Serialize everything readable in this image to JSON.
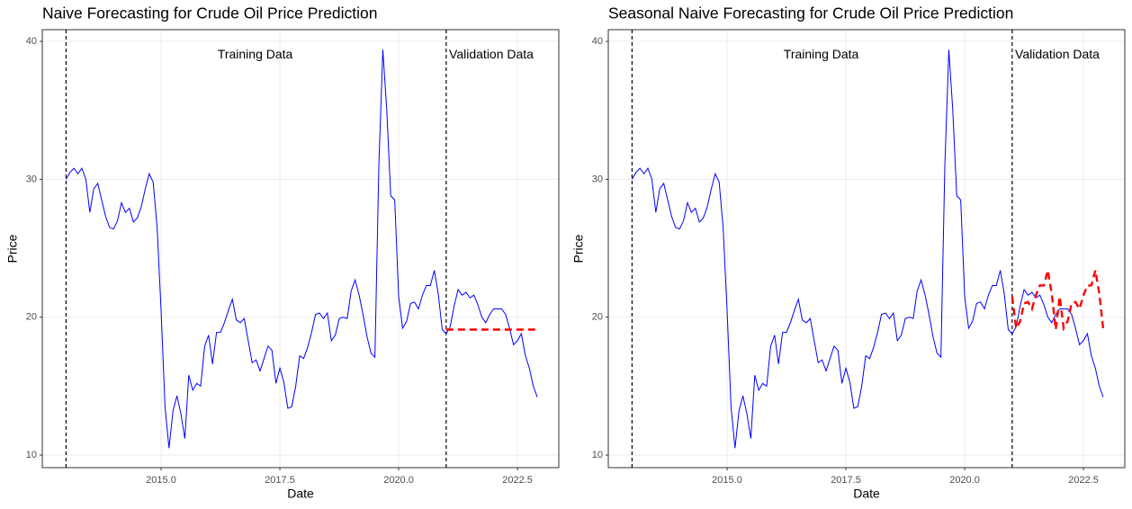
{
  "chart_data": [
    {
      "type": "line",
      "title": "Naive Forecasting for Crude Oil Price Prediction",
      "xlabel": "Date",
      "ylabel": "Price",
      "xlim": [
        2012.5,
        2023.37
      ],
      "ylim": [
        9.09,
        40.85
      ],
      "xticks": [
        {
          "value": 2015,
          "label": "2015.0"
        },
        {
          "value": 2017.5,
          "label": "2017.5"
        },
        {
          "value": 2020,
          "label": "2020.0"
        },
        {
          "value": 2022.5,
          "label": "2022.5"
        }
      ],
      "yticks": [
        10,
        20,
        30,
        40
      ],
      "grid": true,
      "vlines": [
        2013,
        2021
      ],
      "annotations": [
        {
          "text": "Training Data",
          "x": 2016.98,
          "y": 39.0
        },
        {
          "text": "Validation Data",
          "x": 2021.95,
          "y": 39.0
        }
      ],
      "series": [
        {
          "color": "#0000ff",
          "linestyle": "solid",
          "x": [
            2013,
            2013.083,
            2013.167,
            2013.25,
            2013.333,
            2013.417,
            2013.5,
            2013.583,
            2013.667,
            2013.75,
            2013.833,
            2013.917,
            2014,
            2014.083,
            2014.167,
            2014.25,
            2014.333,
            2014.417,
            2014.5,
            2014.583,
            2014.667,
            2014.75,
            2014.833,
            2014.917,
            2015,
            2015.083,
            2015.167,
            2015.25,
            2015.333,
            2015.417,
            2015.5,
            2015.583,
            2015.667,
            2015.75,
            2015.833,
            2015.917,
            2016,
            2016.083,
            2016.167,
            2016.25,
            2016.333,
            2016.417,
            2016.5,
            2016.583,
            2016.667,
            2016.75,
            2016.833,
            2016.917,
            2017,
            2017.083,
            2017.167,
            2017.25,
            2017.333,
            2017.417,
            2017.5,
            2017.583,
            2017.667,
            2017.75,
            2017.833,
            2017.917,
            2018,
            2018.083,
            2018.167,
            2018.25,
            2018.333,
            2018.417,
            2018.5,
            2018.583,
            2018.667,
            2018.75,
            2018.833,
            2018.917,
            2019,
            2019.083,
            2019.167,
            2019.25,
            2019.333,
            2019.417,
            2019.5,
            2019.583,
            2019.667,
            2019.75,
            2019.833,
            2019.917,
            2020,
            2020.083,
            2020.167,
            2020.25,
            2020.333,
            2020.417,
            2020.5,
            2020.583,
            2020.667,
            2020.75,
            2020.833,
            2020.917,
            2021,
            2021.083,
            2021.167,
            2021.25,
            2021.333,
            2021.417,
            2021.5,
            2021.583,
            2021.667,
            2021.75,
            2021.833,
            2021.917,
            2022,
            2022.083,
            2022.167,
            2022.25,
            2022.333,
            2022.417,
            2022.5,
            2022.583,
            2022.667,
            2022.75,
            2022.833,
            2022.917
          ],
          "values": [
            30.0,
            30.5,
            30.8,
            30.4,
            30.8,
            30.0,
            27.6,
            29.3,
            29.7,
            28.5,
            27.3,
            26.5,
            26.4,
            27.0,
            28.3,
            27.6,
            27.9,
            26.9,
            27.2,
            28.0,
            29.3,
            30.4,
            29.8,
            26.5,
            20.5,
            13.5,
            10.5,
            13.2,
            14.3,
            13.0,
            11.2,
            15.8,
            14.7,
            15.2,
            15.0,
            17.9,
            18.7,
            16.6,
            18.9,
            18.9,
            19.6,
            20.5,
            21.3,
            19.8,
            19.6,
            19.9,
            18.3,
            16.7,
            16.9,
            16.1,
            17.0,
            17.9,
            17.6,
            15.2,
            16.3,
            15.3,
            13.4,
            13.5,
            15.0,
            17.2,
            17.0,
            17.8,
            18.9,
            20.2,
            20.3,
            19.9,
            20.3,
            18.3,
            18.7,
            19.9,
            20.0,
            19.9,
            21.9,
            22.7,
            21.6,
            20.2,
            18.6,
            17.4,
            17.1,
            31.0,
            39.4,
            35.0,
            28.8,
            28.5,
            21.5,
            19.2,
            19.7,
            21.0,
            21.1,
            20.6,
            21.6,
            22.3,
            22.3,
            23.4,
            21.7,
            19.1,
            18.8,
            19.3,
            20.8,
            22.0,
            21.6,
            21.8,
            21.4,
            21.6,
            20.9,
            20.0,
            19.6,
            20.2,
            20.6,
            20.6,
            20.6,
            20.2,
            19.2,
            18.0,
            18.3,
            18.8,
            17.2,
            16.3,
            15.0,
            14.2
          ]
        },
        {
          "color": "#ff0000",
          "linestyle": "dashed",
          "x": [
            2021,
            2021.083,
            2021.167,
            2021.25,
            2021.333,
            2021.417,
            2021.5,
            2021.583,
            2021.667,
            2021.75,
            2021.833,
            2021.917,
            2022,
            2022.083,
            2022.167,
            2022.25,
            2022.333,
            2022.417,
            2022.5,
            2022.583,
            2022.667,
            2022.75,
            2022.833,
            2022.917
          ],
          "values": [
            19.1,
            19.1,
            19.1,
            19.1,
            19.1,
            19.1,
            19.1,
            19.1,
            19.1,
            19.1,
            19.1,
            19.1,
            19.1,
            19.1,
            19.1,
            19.1,
            19.1,
            19.1,
            19.1,
            19.1,
            19.1,
            19.1,
            19.1,
            19.1
          ]
        }
      ]
    },
    {
      "type": "line",
      "title": "Seasonal Naive Forecasting for Crude Oil Price Prediction",
      "xlabel": "Date",
      "ylabel": "Price",
      "xlim": [
        2012.5,
        2023.37
      ],
      "ylim": [
        9.09,
        40.85
      ],
      "xticks": [
        {
          "value": 2015,
          "label": "2015.0"
        },
        {
          "value": 2017.5,
          "label": "2017.5"
        },
        {
          "value": 2020,
          "label": "2020.0"
        },
        {
          "value": 2022.5,
          "label": "2022.5"
        }
      ],
      "yticks": [
        10,
        20,
        30,
        40
      ],
      "grid": true,
      "vlines": [
        2013,
        2021
      ],
      "annotations": [
        {
          "text": "Training Data",
          "x": 2016.98,
          "y": 39.0
        },
        {
          "text": "Validation Data",
          "x": 2021.95,
          "y": 39.0
        }
      ],
      "series": [
        {
          "color": "#0000ff",
          "linestyle": "solid",
          "x": [
            2013,
            2013.083,
            2013.167,
            2013.25,
            2013.333,
            2013.417,
            2013.5,
            2013.583,
            2013.667,
            2013.75,
            2013.833,
            2013.917,
            2014,
            2014.083,
            2014.167,
            2014.25,
            2014.333,
            2014.417,
            2014.5,
            2014.583,
            2014.667,
            2014.75,
            2014.833,
            2014.917,
            2015,
            2015.083,
            2015.167,
            2015.25,
            2015.333,
            2015.417,
            2015.5,
            2015.583,
            2015.667,
            2015.75,
            2015.833,
            2015.917,
            2016,
            2016.083,
            2016.167,
            2016.25,
            2016.333,
            2016.417,
            2016.5,
            2016.583,
            2016.667,
            2016.75,
            2016.833,
            2016.917,
            2017,
            2017.083,
            2017.167,
            2017.25,
            2017.333,
            2017.417,
            2017.5,
            2017.583,
            2017.667,
            2017.75,
            2017.833,
            2017.917,
            2018,
            2018.083,
            2018.167,
            2018.25,
            2018.333,
            2018.417,
            2018.5,
            2018.583,
            2018.667,
            2018.75,
            2018.833,
            2018.917,
            2019,
            2019.083,
            2019.167,
            2019.25,
            2019.333,
            2019.417,
            2019.5,
            2019.583,
            2019.667,
            2019.75,
            2019.833,
            2019.917,
            2020,
            2020.083,
            2020.167,
            2020.25,
            2020.333,
            2020.417,
            2020.5,
            2020.583,
            2020.667,
            2020.75,
            2020.833,
            2020.917,
            2021,
            2021.083,
            2021.167,
            2021.25,
            2021.333,
            2021.417,
            2021.5,
            2021.583,
            2021.667,
            2021.75,
            2021.833,
            2021.917,
            2022,
            2022.083,
            2022.167,
            2022.25,
            2022.333,
            2022.417,
            2022.5,
            2022.583,
            2022.667,
            2022.75,
            2022.833,
            2022.917
          ],
          "values": [
            30.0,
            30.5,
            30.8,
            30.4,
            30.8,
            30.0,
            27.6,
            29.3,
            29.7,
            28.5,
            27.3,
            26.5,
            26.4,
            27.0,
            28.3,
            27.6,
            27.9,
            26.9,
            27.2,
            28.0,
            29.3,
            30.4,
            29.8,
            26.5,
            20.5,
            13.5,
            10.5,
            13.2,
            14.3,
            13.0,
            11.2,
            15.8,
            14.7,
            15.2,
            15.0,
            17.9,
            18.7,
            16.6,
            18.9,
            18.9,
            19.6,
            20.5,
            21.3,
            19.8,
            19.6,
            19.9,
            18.3,
            16.7,
            16.9,
            16.1,
            17.0,
            17.9,
            17.6,
            15.2,
            16.3,
            15.3,
            13.4,
            13.5,
            15.0,
            17.2,
            17.0,
            17.8,
            18.9,
            20.2,
            20.3,
            19.9,
            20.3,
            18.3,
            18.7,
            19.9,
            20.0,
            19.9,
            21.9,
            22.7,
            21.6,
            20.2,
            18.6,
            17.4,
            17.1,
            31.0,
            39.4,
            35.0,
            28.8,
            28.5,
            21.5,
            19.2,
            19.7,
            21.0,
            21.1,
            20.6,
            21.6,
            22.3,
            22.3,
            23.4,
            21.7,
            19.1,
            18.8,
            19.3,
            20.8,
            22.0,
            21.6,
            21.8,
            21.4,
            21.6,
            20.9,
            20.0,
            19.6,
            20.2,
            20.6,
            20.6,
            20.6,
            20.2,
            19.2,
            18.0,
            18.3,
            18.8,
            17.2,
            16.3,
            15.0,
            14.2
          ]
        },
        {
          "color": "#ff0000",
          "linestyle": "dashed",
          "x": [
            2021,
            2021.083,
            2021.167,
            2021.25,
            2021.333,
            2021.417,
            2021.5,
            2021.583,
            2021.667,
            2021.75,
            2021.833,
            2021.917,
            2022,
            2022.083,
            2022.167,
            2022.25,
            2022.333,
            2022.417,
            2022.5,
            2022.583,
            2022.667,
            2022.75,
            2022.833,
            2022.917
          ],
          "values": [
            21.5,
            19.2,
            19.7,
            21.0,
            21.1,
            20.6,
            21.6,
            22.3,
            22.3,
            23.4,
            21.7,
            19.1,
            21.5,
            19.2,
            19.7,
            21.0,
            21.1,
            20.6,
            21.6,
            22.3,
            22.3,
            23.4,
            21.7,
            19.1
          ]
        }
      ]
    }
  ]
}
